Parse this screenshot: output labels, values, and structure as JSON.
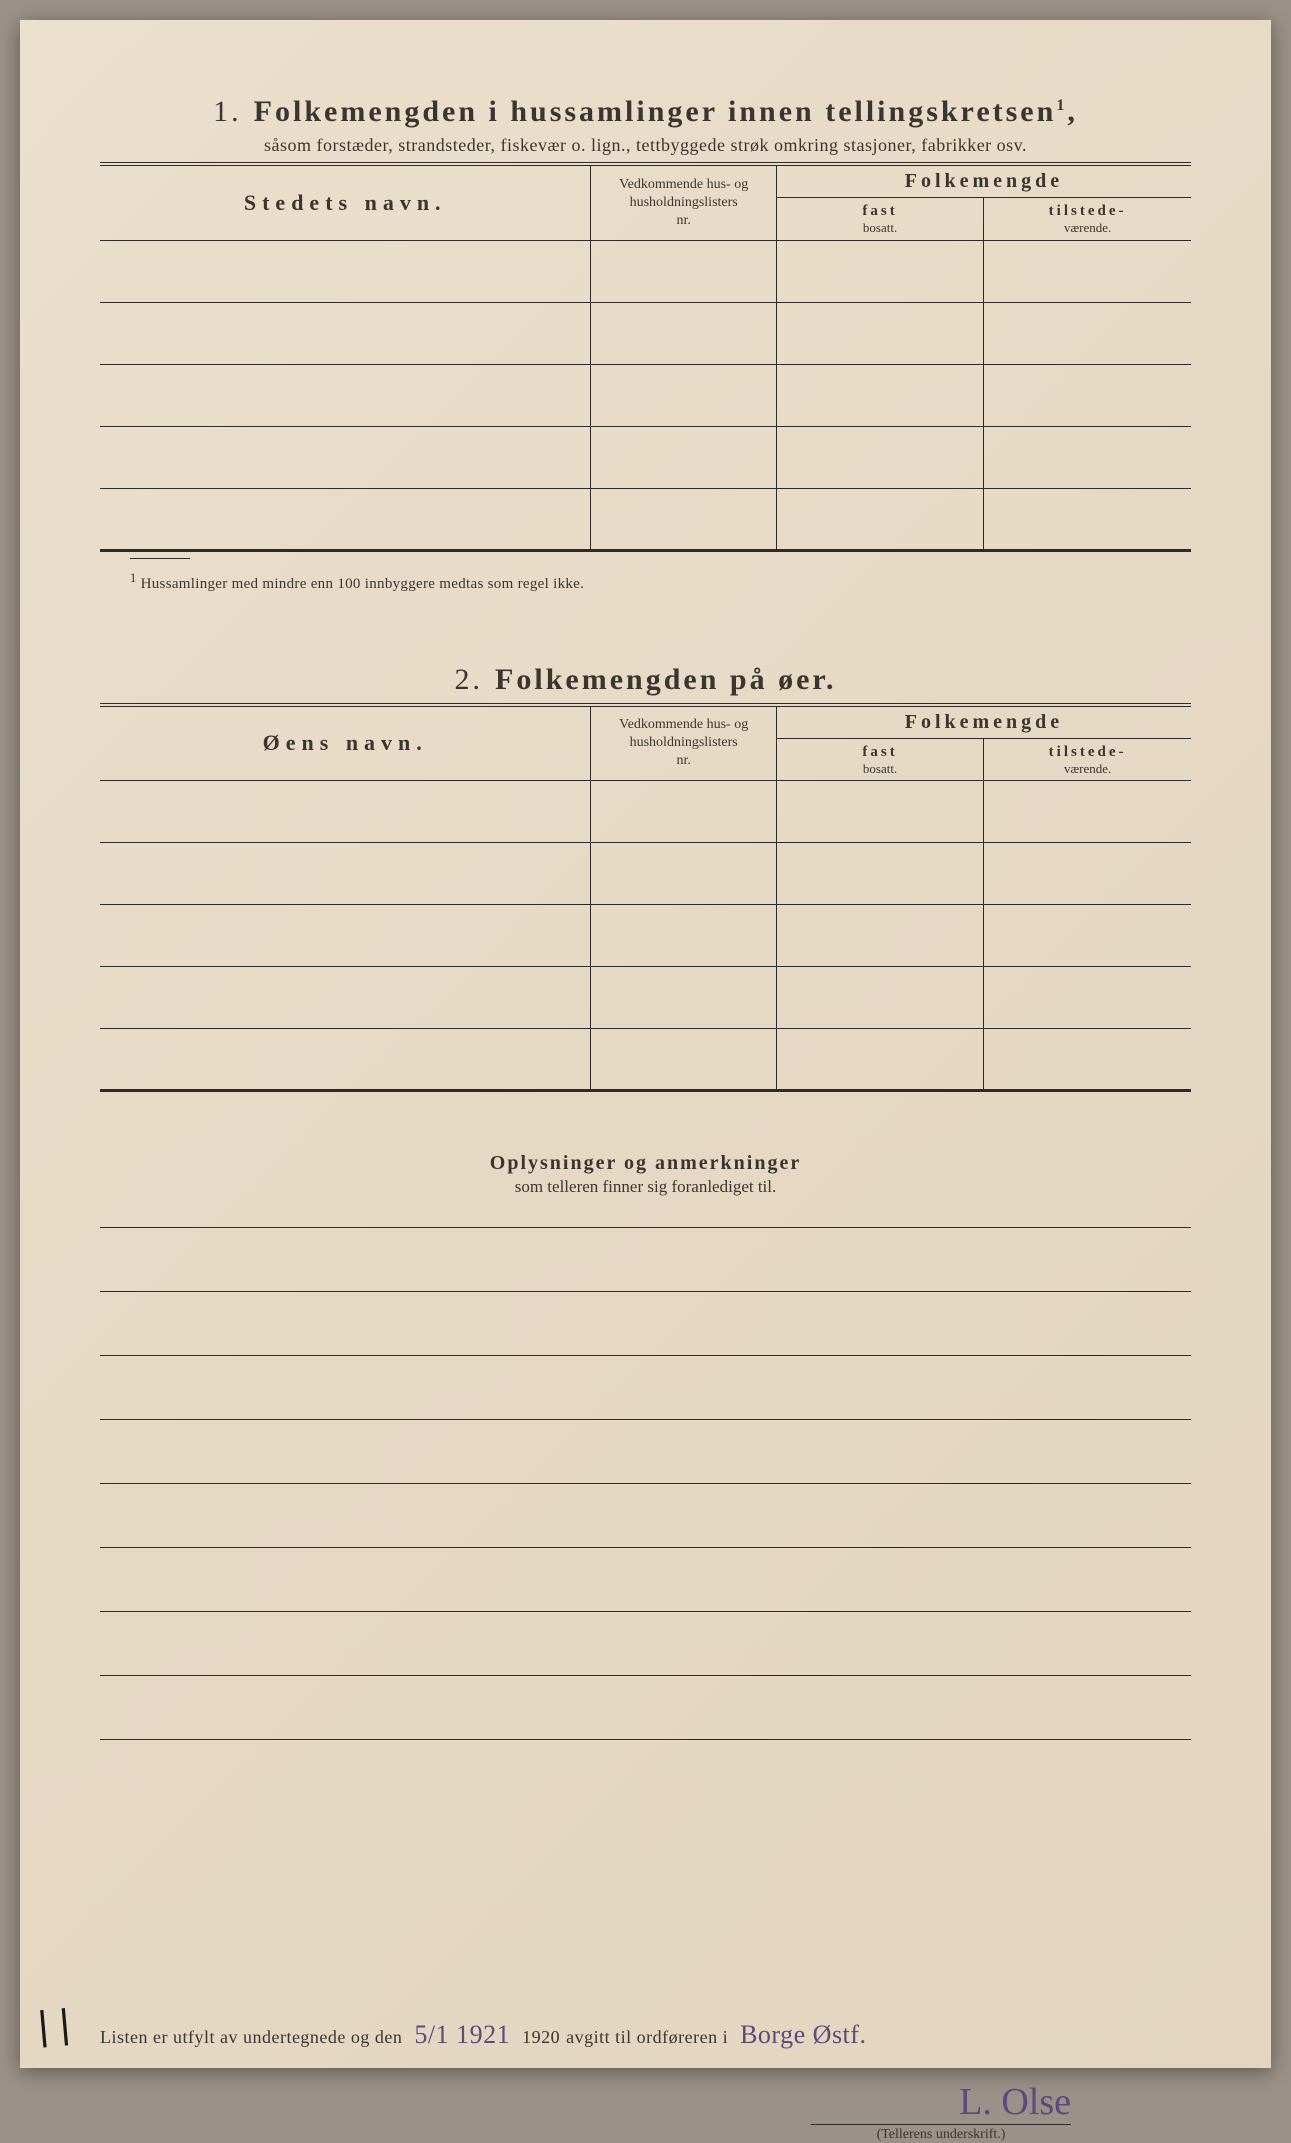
{
  "colors": {
    "paper": "#e8dcc8",
    "ink": "#3a3530",
    "handwriting": "#5b4a7a",
    "rule": "#2b2b2b"
  },
  "section1": {
    "number": "1.",
    "title": "Folkemengden i hussamlinger innen tellingskretsen",
    "title_sup": "1",
    "subtitle": "såsom forstæder, strandsteder, fiskevær o. lign., tettbyggede strøk omkring stasjoner, fabrikker osv.",
    "headers": {
      "name": "Stedets navn.",
      "ved_l1": "Vedkommende hus- og",
      "ved_l2": "husholdningslisters",
      "ved_l3": "nr.",
      "folke": "Folkemengde",
      "fast_top": "fast",
      "fast_bot": "bosatt.",
      "til_top": "tilstede-",
      "til_bot": "værende."
    },
    "rows": [
      {
        "name": "",
        "ved": "",
        "fast": "",
        "til": ""
      },
      {
        "name": "",
        "ved": "",
        "fast": "",
        "til": ""
      },
      {
        "name": "",
        "ved": "",
        "fast": "",
        "til": ""
      },
      {
        "name": "",
        "ved": "",
        "fast": "",
        "til": ""
      },
      {
        "name": "",
        "ved": "",
        "fast": "",
        "til": ""
      }
    ],
    "footnote_mark": "1",
    "footnote": "Hussamlinger med mindre enn 100 innbyggere medtas som regel ikke."
  },
  "section2": {
    "number": "2.",
    "title": "Folkemengden på øer.",
    "headers": {
      "name": "Øens navn.",
      "ved_l1": "Vedkommende hus- og",
      "ved_l2": "husholdningslisters",
      "ved_l3": "nr.",
      "folke": "Folkemengde",
      "fast_top": "fast",
      "fast_bot": "bosatt.",
      "til_top": "tilstede-",
      "til_bot": "værende."
    },
    "rows": [
      {
        "name": "",
        "ved": "",
        "fast": "",
        "til": ""
      },
      {
        "name": "",
        "ved": "",
        "fast": "",
        "til": ""
      },
      {
        "name": "",
        "ved": "",
        "fast": "",
        "til": ""
      },
      {
        "name": "",
        "ved": "",
        "fast": "",
        "til": ""
      },
      {
        "name": "",
        "ved": "",
        "fast": "",
        "til": ""
      }
    ]
  },
  "remarks": {
    "title": "Oplysninger og anmerkninger",
    "subtitle": "som telleren finner sig foranlediget til.",
    "line_count": 8
  },
  "bottom": {
    "text_before_date": "Listen er utfylt av undertegnede og den",
    "date_hand": "5/1  1921",
    "year_printed": "1920",
    "text_mid": "avgitt til ordføreren i",
    "place_hand": "Borge Østf.",
    "signature": "L. Olse",
    "sig_label": "(Tellerens underskrift.)"
  },
  "edge_mark": "| |"
}
